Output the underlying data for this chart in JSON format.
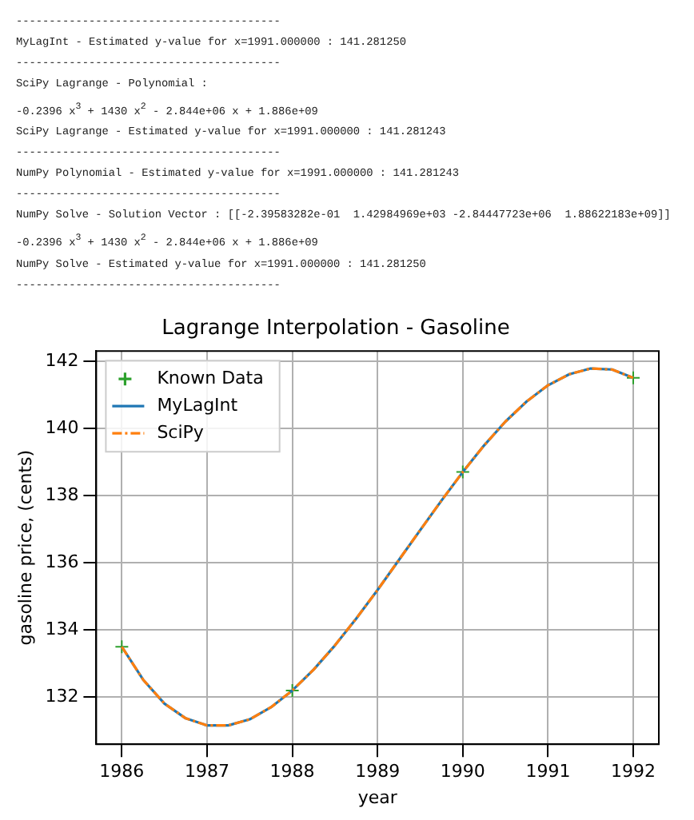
{
  "chart_data": {
    "type": "line",
    "title": "Lagrange Interpolation - Gasoline",
    "xlabel": "year",
    "ylabel": "gasoline price, (cents)",
    "annotations": [
      "----------------------------------------",
      "MyLagInt - Estimated y-value for x=1991.000000 : 141.281250",
      "----------------------------------------",
      "SciPy Lagrange - Polynomial :",
      "-0.2396 x$^{3}$ + 1430 x$^{2}$ - 2.844e+06 x + 1.886e+09",
      "SciPy Lagrange - Estimated y-value for x=1991.000000 : 141.281243",
      "----------------------------------------",
      "NumPy Polynomial - Estimated y-value for x=1991.000000 : 141.281243",
      "----------------------------------------",
      "NumPy Solve - Solution Vector : [[-2.39583282e-01  1.42984969e+03 -2.84447723e+06  1.88622183e+09]]",
      "-0.2396 x$^{3}$ + 1430 x$^{2}$ - 2.844e+06 x + 1.886e+09",
      "NumPy Solve - Estimated y-value for x=1991.000000 : 141.281250",
      "----------------------------------------"
    ],
    "x": [
      1986,
      1986.25,
      1986.5,
      1986.75,
      1987,
      1987.25,
      1987.5,
      1987.75,
      1988,
      1988.25,
      1988.5,
      1988.75,
      1989,
      1989.25,
      1989.5,
      1989.75,
      1990,
      1990.25,
      1990.5,
      1990.75,
      1991,
      1991.25,
      1991.5,
      1991.75,
      1992
    ],
    "series": [
      {
        "name": "Known Data",
        "type": "scatter",
        "marker": "cross",
        "color": "#2ca02c",
        "x": [
          1986,
          1988,
          1990,
          1992
        ],
        "values": [
          133.5,
          132.2,
          138.7,
          141.5
        ]
      },
      {
        "name": "MyLagInt",
        "type": "line",
        "line_style": "solid",
        "color": "#1f77b4",
        "values": [
          133.5,
          132.52,
          131.81,
          131.37,
          131.16,
          131.16,
          131.34,
          131.7,
          132.2,
          132.82,
          133.54,
          134.34,
          135.19,
          136.08,
          136.97,
          137.85,
          138.7,
          139.49,
          140.2,
          140.8,
          141.28,
          141.61,
          141.78,
          141.75,
          141.5
        ]
      },
      {
        "name": "SciPy",
        "type": "line",
        "line_style": "dashed",
        "color": "#ff7f0e",
        "values": [
          133.5,
          132.52,
          131.81,
          131.37,
          131.16,
          131.16,
          131.34,
          131.7,
          132.2,
          132.82,
          133.54,
          134.34,
          135.19,
          136.08,
          136.97,
          137.85,
          138.7,
          139.49,
          140.2,
          140.8,
          141.28,
          141.61,
          141.78,
          141.75,
          141.5
        ]
      }
    ],
    "xlim": [
      1985.7,
      1992.3
    ],
    "xticks": [
      1986,
      1987,
      1988,
      1989,
      1990,
      1991,
      1992
    ],
    "ylim": [
      130.6,
      142.3
    ],
    "yticks": [
      132,
      134,
      136,
      138,
      140,
      142
    ],
    "grid": true,
    "legend": "top left"
  }
}
